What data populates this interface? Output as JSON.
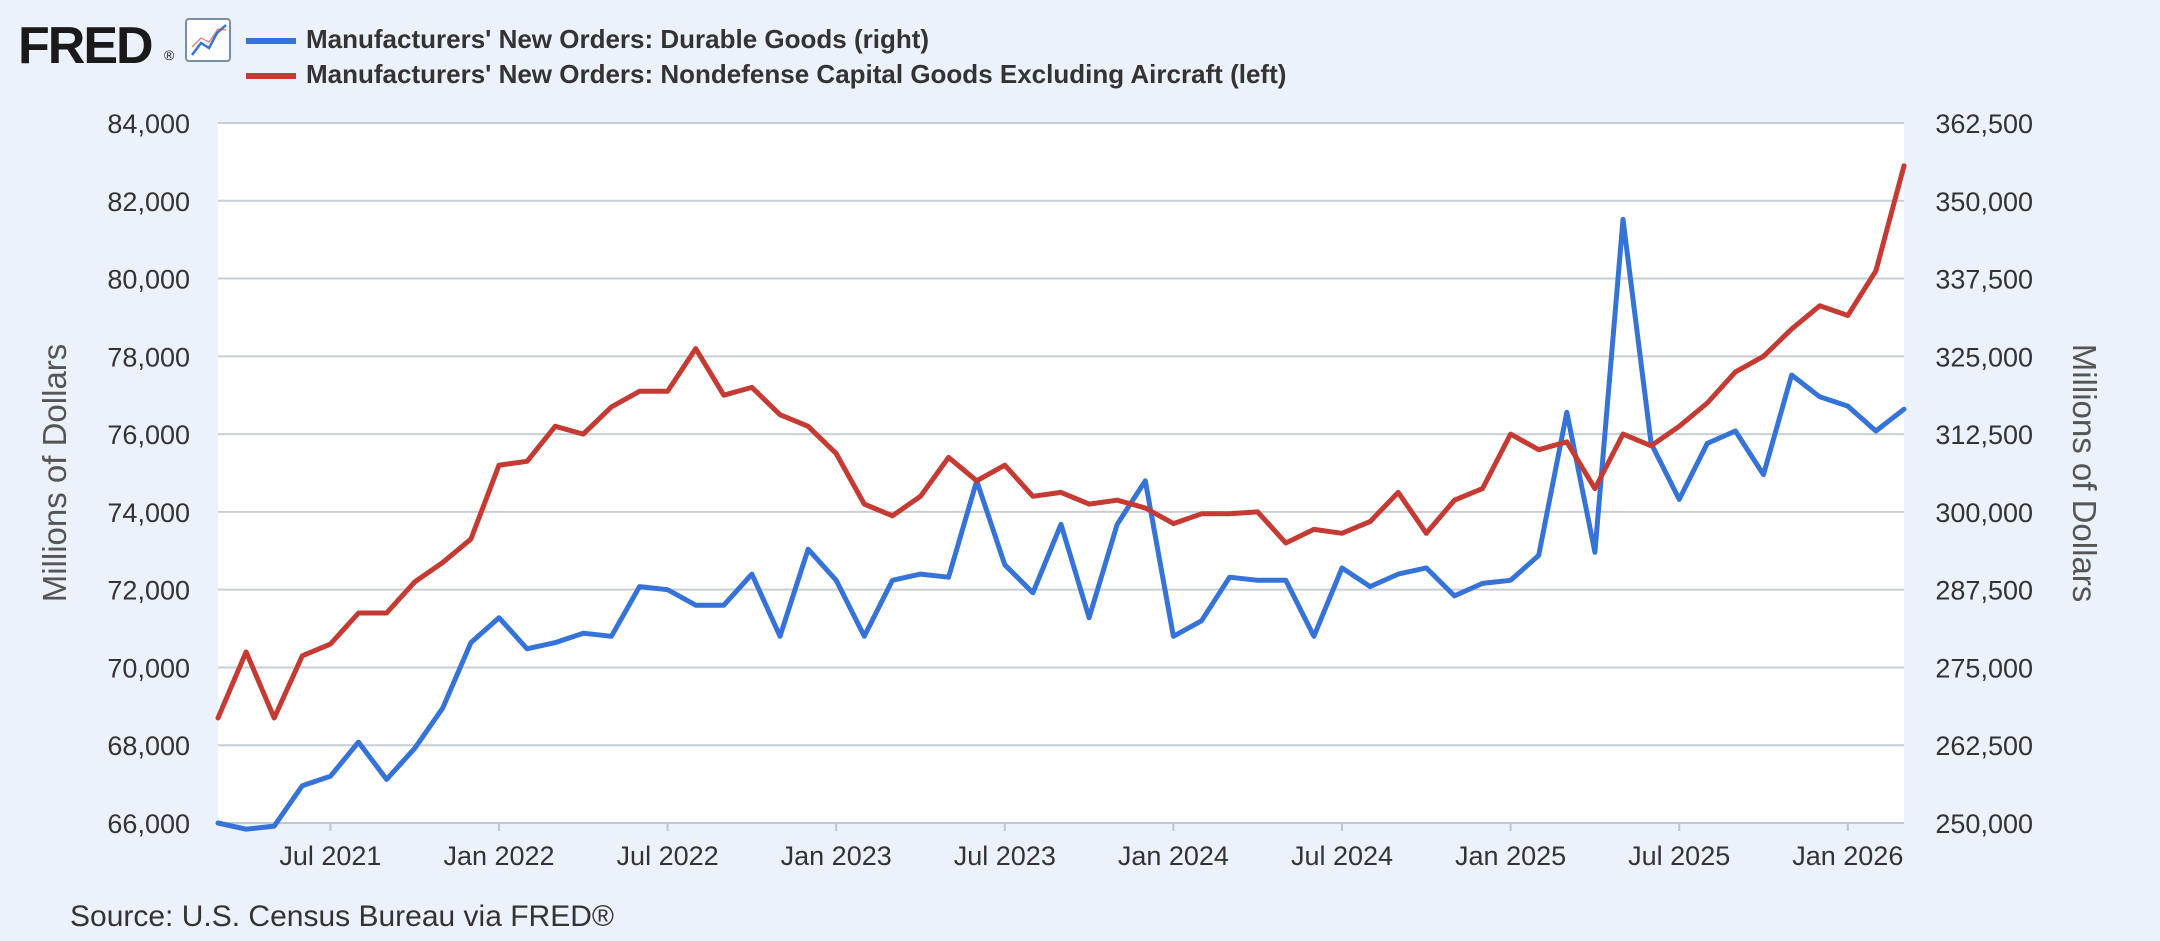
{
  "header": {
    "logo_text": "FRED",
    "logo_mark": "®"
  },
  "footer": {
    "source": "Source: U.S. Census Bureau via FRED®"
  },
  "chart_data": {
    "type": "line",
    "xlabel": "",
    "x_ticks": [
      "Jul 2021",
      "Jan 2022",
      "Jul 2022",
      "Jan 2023",
      "Jul 2023",
      "Jan 2024",
      "Jul 2024",
      "Jan 2025",
      "Jul 2025",
      "Jan 2026"
    ],
    "x_range": [
      "2021-03",
      "2026-03"
    ],
    "left_axis": {
      "label": "Millions of Dollars",
      "ylim": [
        66000,
        84000
      ],
      "ticks": [
        "84,000",
        "82,000",
        "80,000",
        "78,000",
        "76,000",
        "74,000",
        "72,000",
        "70,000",
        "68,000",
        "66,000"
      ]
    },
    "right_axis": {
      "label": "Millions of Dollars",
      "ylim": [
        250000,
        362500
      ],
      "ticks": [
        "362,500",
        "350,000",
        "337,500",
        "325,000",
        "312,500",
        "300,000",
        "287,500",
        "275,000",
        "262,500",
        "250,000"
      ]
    },
    "grid": true,
    "legend_position": "top-left",
    "x": [
      "2021-03",
      "2021-04",
      "2021-05",
      "2021-06",
      "2021-07",
      "2021-08",
      "2021-09",
      "2021-10",
      "2021-11",
      "2021-12",
      "2022-01",
      "2022-02",
      "2022-03",
      "2022-04",
      "2022-05",
      "2022-06",
      "2022-07",
      "2022-08",
      "2022-09",
      "2022-10",
      "2022-11",
      "2022-12",
      "2023-01",
      "2023-02",
      "2023-03",
      "2023-04",
      "2023-05",
      "2023-06",
      "2023-07",
      "2023-08",
      "2023-09",
      "2023-10",
      "2023-11",
      "2023-12",
      "2024-01",
      "2024-02",
      "2024-03",
      "2024-04",
      "2024-05",
      "2024-06",
      "2024-07",
      "2024-08",
      "2024-09",
      "2024-10",
      "2024-11",
      "2024-12",
      "2025-01",
      "2025-02",
      "2025-03",
      "2025-04",
      "2025-05",
      "2025-06",
      "2025-07",
      "2025-08",
      "2025-09",
      "2025-10",
      "2025-11",
      "2025-12",
      "2026-01",
      "2026-02",
      "2026-03"
    ],
    "series": [
      {
        "name": "Manufacturers' New Orders: Durable Goods (right)",
        "axis": "right",
        "color": "#3573d9",
        "values": [
          250000,
          249000,
          249500,
          256000,
          257500,
          263000,
          257000,
          262000,
          268500,
          279000,
          283000,
          278000,
          279000,
          280500,
          280000,
          288000,
          287500,
          285000,
          285000,
          290000,
          280000,
          294000,
          289000,
          280000,
          289000,
          290000,
          289500,
          305000,
          291500,
          287000,
          298000,
          283000,
          298000,
          305000,
          280000,
          282500,
          289500,
          289000,
          289000,
          280000,
          291000,
          288000,
          290000,
          291000,
          286500,
          288500,
          289000,
          293000,
          316000,
          293500,
          347000,
          311000,
          302000,
          311000,
          313000,
          306000,
          322000,
          318500,
          317000,
          313000,
          316500
        ]
      },
      {
        "name": "Manufacturers' New Orders: Nondefense Capital Goods Excluding Aircraft (left)",
        "axis": "left",
        "color": "#c53a32",
        "values": [
          68700,
          70400,
          68700,
          70300,
          70600,
          71400,
          71400,
          72200,
          72700,
          73300,
          75200,
          75300,
          76200,
          76000,
          76700,
          77100,
          77100,
          78200,
          77000,
          77200,
          76500,
          76200,
          75500,
          74200,
          73900,
          74400,
          75400,
          74800,
          75200,
          74400,
          74500,
          74200,
          74300,
          74100,
          73700,
          73950,
          73950,
          74000,
          73200,
          73550,
          73450,
          73750,
          74500,
          73450,
          74300,
          74600,
          76000,
          75600,
          75800,
          74600,
          76000,
          75700,
          76200,
          76800,
          77600,
          78000,
          78700,
          79300,
          79050,
          80200,
          82900
        ]
      }
    ]
  }
}
